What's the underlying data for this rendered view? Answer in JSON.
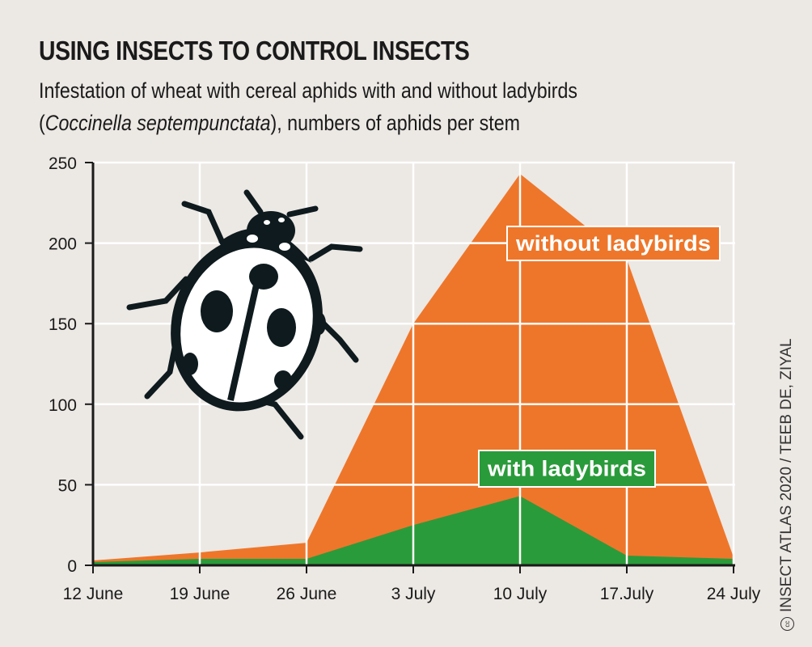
{
  "chart_data": {
    "type": "area",
    "title": "USING INSECTS TO CONTROL INSECTS",
    "subtitle_line1": "Infestation of wheat with cereal aphids with and without ladybirds",
    "subtitle_species": "Coccinella septempunctata",
    "subtitle_rest": "), numbers of aphids per stem",
    "subtitle_open": "(",
    "categories": [
      "12 June",
      "19 June",
      "26 June",
      "3 July",
      "10 July",
      "17.July",
      "24 July"
    ],
    "ylim": [
      0,
      250
    ],
    "yticks": [
      0,
      50,
      100,
      150,
      200,
      250
    ],
    "grid": true,
    "series": [
      {
        "name": "without ladybirds",
        "color": "#ee762a",
        "values": [
          3,
          8,
          14,
          150,
          243,
          190,
          5
        ]
      },
      {
        "name": "with ladybirds",
        "color": "#2a9b3a",
        "values": [
          2,
          4,
          4,
          25,
          43,
          6,
          4
        ]
      }
    ]
  },
  "credit": "INSECT ATLAS 2020 / TEEB DE, ZIYAL",
  "credit_icon": "creative-commons-icon",
  "illustration": "ladybird-icon"
}
